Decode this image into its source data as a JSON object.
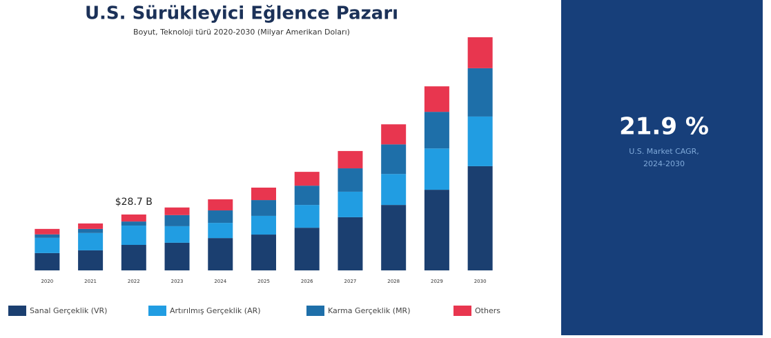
{
  "chart_data": {
    "type": "stacked_bar",
    "title": "U.S. Sürükleyici Eğlence Pazarı",
    "subtitle": "Boyut, Teknoloji türü 2020-2030 (Milyar Amerikan Doları)",
    "categories": [
      "2020",
      "2021",
      "2022",
      "2023",
      "2024",
      "2025",
      "2026",
      "2027",
      "2028",
      "2029",
      "2030"
    ],
    "series": [
      {
        "name": "Sanal Gerçeklik (VR)",
        "color": "#1b3f70",
        "values": [
          8.9,
          10.3,
          13.1,
          14.2,
          16.6,
          18.4,
          21.9,
          27.3,
          33.6,
          41.4,
          53.5
        ]
      },
      {
        "name": "Artırılmış Gerçeklik (AR)",
        "color": "#219de2",
        "values": [
          7.8,
          8.9,
          9.9,
          8.5,
          7.8,
          9.6,
          11.7,
          13.1,
          15.9,
          21.2,
          25.5
        ]
      },
      {
        "name": "Karma Gerçeklik (MR)",
        "color": "#1e6fa9",
        "values": [
          1.8,
          2.1,
          2.1,
          5.7,
          6.4,
          8.1,
          9.9,
          12.0,
          15.2,
          18.8,
          24.8
        ]
      },
      {
        "name": "Others",
        "color": "#e8364f",
        "values": [
          2.8,
          2.8,
          3.6,
          3.9,
          5.7,
          6.4,
          7.1,
          8.9,
          10.3,
          13.1,
          15.9
        ]
      }
    ],
    "annotation": {
      "text": "$28.7 B",
      "category": "2022"
    },
    "panel": {
      "value": "21.9 %",
      "caption": "U.S. Market CAGR,",
      "period": "2024-2030",
      "color": "#173f7a"
    }
  }
}
